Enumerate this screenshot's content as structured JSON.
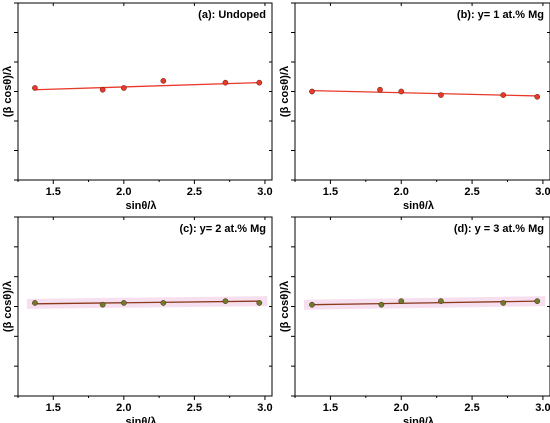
{
  "chart_data": [
    {
      "type": "line",
      "title": "(a): Undoped",
      "xlabel": "sinθ/λ",
      "ylabel": "(β cosθ)/λ",
      "xlim": [
        1.25,
        3.05
      ],
      "xticks": [
        "1.5",
        "2.0",
        "2.5",
        "3.0"
      ],
      "x": [
        1.37,
        1.85,
        2.0,
        2.28,
        2.72,
        2.96
      ],
      "points": [
        0.52,
        0.51,
        0.52,
        0.56,
        0.55,
        0.55
      ],
      "fit": [
        0.51,
        0.55
      ],
      "ylim": [
        0,
        1
      ],
      "y_tick_labels": "none",
      "colors": {
        "marker": "#e8392a",
        "line": "#e8392a",
        "band": ""
      },
      "marker_style": "circle"
    },
    {
      "type": "line",
      "title": "(b): y= 1 at.% Mg",
      "xlabel": "sinθ/λ",
      "ylabel": "(β cosθ)/λ",
      "xlim": [
        1.25,
        3.05
      ],
      "xticks": [
        "1.5",
        "2.0",
        "2.5",
        "3.0"
      ],
      "x": [
        1.37,
        1.85,
        2.0,
        2.28,
        2.72,
        2.96
      ],
      "points": [
        0.5,
        0.51,
        0.5,
        0.48,
        0.48,
        0.47
      ],
      "fit": [
        0.505,
        0.475
      ],
      "ylim": [
        0,
        1
      ],
      "y_tick_labels": "none",
      "colors": {
        "marker": "#e8392a",
        "line": "#e8392a",
        "band": ""
      },
      "marker_style": "circle"
    },
    {
      "type": "line",
      "title": "(c): y= 2 at.% Mg",
      "xlabel": "sinθ/λ",
      "ylabel": "(β cosθ)/λ",
      "xlim": [
        1.25,
        3.05
      ],
      "xticks": [
        "1.5",
        "2.0",
        "2.5",
        "3.0"
      ],
      "x": [
        1.37,
        1.85,
        2.0,
        2.28,
        2.72,
        2.96
      ],
      "points": [
        0.52,
        0.51,
        0.52,
        0.52,
        0.53,
        0.52
      ],
      "fit": [
        0.515,
        0.53
      ],
      "ylim": [
        0,
        1
      ],
      "y_tick_labels": "none",
      "colors": {
        "marker": "#6b7d2a",
        "line": "#8b3a1e",
        "band": "#f3d6ea"
      },
      "marker_style": "circle"
    },
    {
      "type": "line",
      "title": "(d): y = 3 at.% Mg",
      "xlabel": "sinθ/λ",
      "ylabel": "(β cosθ)/λ",
      "xlim": [
        1.25,
        3.05
      ],
      "xticks": [
        "1.5",
        "2.0",
        "2.5",
        "3.0"
      ],
      "x": [
        1.37,
        1.86,
        2.0,
        2.28,
        2.72,
        2.96
      ],
      "points": [
        0.51,
        0.51,
        0.53,
        0.53,
        0.52,
        0.53
      ],
      "fit": [
        0.51,
        0.53
      ],
      "ylim": [
        0,
        1
      ],
      "y_tick_labels": "none",
      "colors": {
        "marker": "#6b7d2a",
        "line": "#8b3a1e",
        "band": "#f3d6ea"
      },
      "marker_style": "circle"
    }
  ]
}
